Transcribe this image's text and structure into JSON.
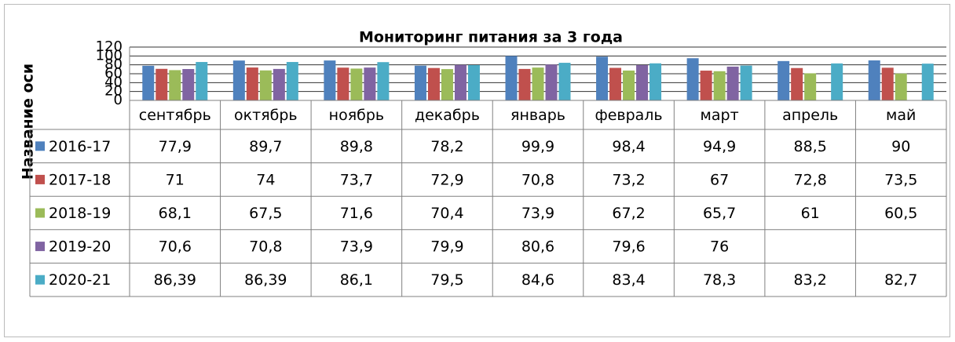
{
  "chart_data": {
    "type": "bar",
    "title": "Мониторинг питания за 3 года",
    "y_label": "Название оси",
    "categories": [
      "сентябрь",
      "октябрь",
      "ноябрь",
      "декабрь",
      "январь",
      "февраль",
      "март",
      "апрель",
      "май"
    ],
    "series": [
      {
        "name": "2016-17",
        "color": "#4f81bd",
        "values": [
          77.9,
          89.7,
          89.8,
          78.2,
          99.9,
          98.4,
          94.9,
          88.5,
          90
        ],
        "value_labels": [
          "77,9",
          "89,7",
          "89,8",
          "78,2",
          "99,9",
          "98,4",
          "94,9",
          "88,5",
          "90"
        ]
      },
      {
        "name": "2017-18",
        "color": "#c0504d",
        "values": [
          71,
          74,
          73.7,
          72.9,
          70.8,
          73.2,
          67,
          72.8,
          73.5
        ],
        "value_labels": [
          "71",
          "74",
          "73,7",
          "72,9",
          "70,8",
          "73,2",
          "67",
          "72,8",
          "73,5"
        ]
      },
      {
        "name": "2018-19",
        "color": "#9bbb59",
        "values": [
          68.1,
          67.5,
          71.6,
          70.4,
          73.9,
          67.2,
          65.7,
          61,
          60.5
        ],
        "value_labels": [
          "68,1",
          "67,5",
          "71,6",
          "70,4",
          "73,9",
          "67,2",
          "65,7",
          "61",
          "60,5"
        ]
      },
      {
        "name": "2019-20",
        "color": "#8064a2",
        "values": [
          70.6,
          70.8,
          73.9,
          79.9,
          80.6,
          79.6,
          76,
          null,
          null
        ],
        "value_labels": [
          "70,6",
          "70,8",
          "73,9",
          "79,9",
          "80,6",
          "79,6",
          "76",
          null,
          null
        ]
      },
      {
        "name": "2020-21",
        "color": "#4bacc6",
        "values": [
          86.39,
          86.39,
          86.1,
          79.5,
          84.6,
          83.4,
          78.3,
          83.2,
          82.7
        ],
        "value_labels": [
          "86,39",
          "86,39",
          "86,1",
          "79,5",
          "84,6",
          "83,4",
          "78,3",
          "83,2",
          "82,7"
        ]
      }
    ],
    "ylim": [
      0,
      120
    ],
    "yticks": [
      0,
      20,
      40,
      60,
      80,
      100,
      120
    ],
    "grid": true
  }
}
